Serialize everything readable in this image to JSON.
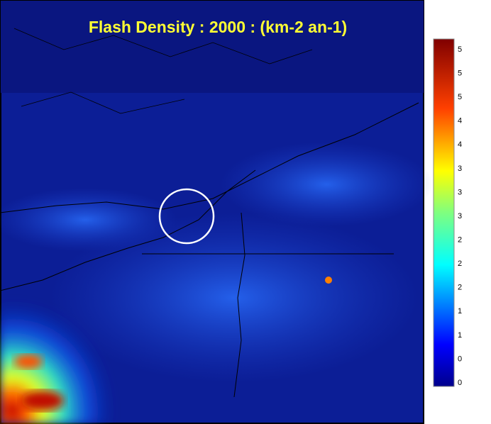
{
  "title": "Flash Density : 2000 : (km-2 an-1)",
  "colorbar": {
    "labels": [
      "5",
      "5",
      "5",
      "4",
      "4",
      "3",
      "3",
      "3",
      "2",
      "2",
      "2",
      "1",
      "1",
      "0",
      "0"
    ]
  }
}
